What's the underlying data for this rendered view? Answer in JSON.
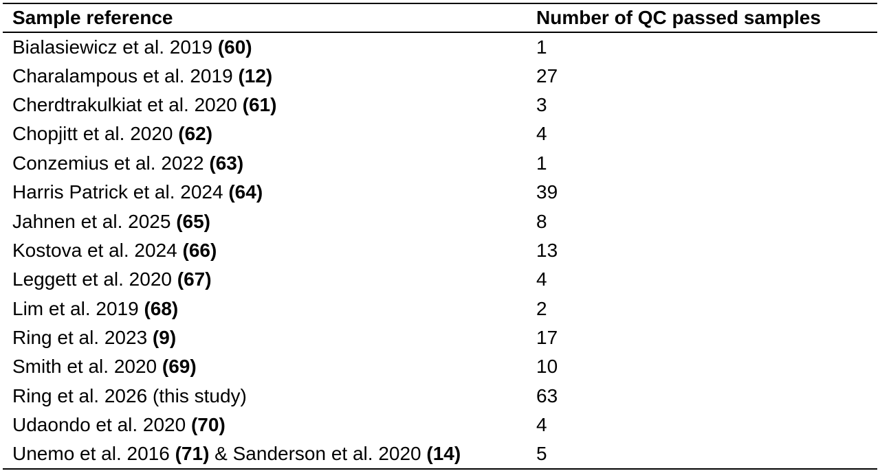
{
  "table": {
    "headers": [
      "Sample reference",
      "Number of QC passed samples"
    ],
    "rows": [
      {
        "parts": [
          {
            "text": "Bialasiewicz et al. 2019 ",
            "bold": false
          },
          {
            "text": "(60)",
            "bold": true
          }
        ],
        "count": "1"
      },
      {
        "parts": [
          {
            "text": "Charalampous et al. 2019 ",
            "bold": false
          },
          {
            "text": "(12)",
            "bold": true
          }
        ],
        "count": "27"
      },
      {
        "parts": [
          {
            "text": "Cherdtrakulkiat et al. 2020 ",
            "bold": false
          },
          {
            "text": "(61)",
            "bold": true
          }
        ],
        "count": "3"
      },
      {
        "parts": [
          {
            "text": "Chopjitt et al. 2020 ",
            "bold": false
          },
          {
            "text": "(62)",
            "bold": true
          }
        ],
        "count": "4"
      },
      {
        "parts": [
          {
            "text": "Conzemius et al. 2022 ",
            "bold": false
          },
          {
            "text": "(63)",
            "bold": true
          }
        ],
        "count": "1"
      },
      {
        "parts": [
          {
            "text": "Harris Patrick et al. 2024 ",
            "bold": false
          },
          {
            "text": "(64)",
            "bold": true
          }
        ],
        "count": "39"
      },
      {
        "parts": [
          {
            "text": "Jahnen et al. 2025 ",
            "bold": false
          },
          {
            "text": "(65)",
            "bold": true
          }
        ],
        "count": "8"
      },
      {
        "parts": [
          {
            "text": "Kostova et al. 2024 ",
            "bold": false
          },
          {
            "text": "(66)",
            "bold": true
          }
        ],
        "count": "13"
      },
      {
        "parts": [
          {
            "text": "Leggett et al. 2020 ",
            "bold": false
          },
          {
            "text": "(67)",
            "bold": true
          }
        ],
        "count": "4"
      },
      {
        "parts": [
          {
            "text": "Lim et al. 2019 ",
            "bold": false
          },
          {
            "text": "(68)",
            "bold": true
          }
        ],
        "count": "2"
      },
      {
        "parts": [
          {
            "text": "Ring et al. 2023 ",
            "bold": false
          },
          {
            "text": "(9)",
            "bold": true
          }
        ],
        "count": "17"
      },
      {
        "parts": [
          {
            "text": "Smith et al. 2020 ",
            "bold": false
          },
          {
            "text": "(69)",
            "bold": true
          }
        ],
        "count": "10"
      },
      {
        "parts": [
          {
            "text": "Ring et al. 2026 (this study)",
            "bold": false
          }
        ],
        "count": "63"
      },
      {
        "parts": [
          {
            "text": "Udaondo et al. 2020 ",
            "bold": false
          },
          {
            "text": "(70)",
            "bold": true
          }
        ],
        "count": "4"
      },
      {
        "parts": [
          {
            "text": "Unemo et al. 2016 ",
            "bold": false
          },
          {
            "text": "(71)",
            "bold": true
          },
          {
            "text": " & Sanderson et al. 2020 ",
            "bold": false
          },
          {
            "text": "(14)",
            "bold": true
          }
        ],
        "count": "5"
      }
    ]
  }
}
